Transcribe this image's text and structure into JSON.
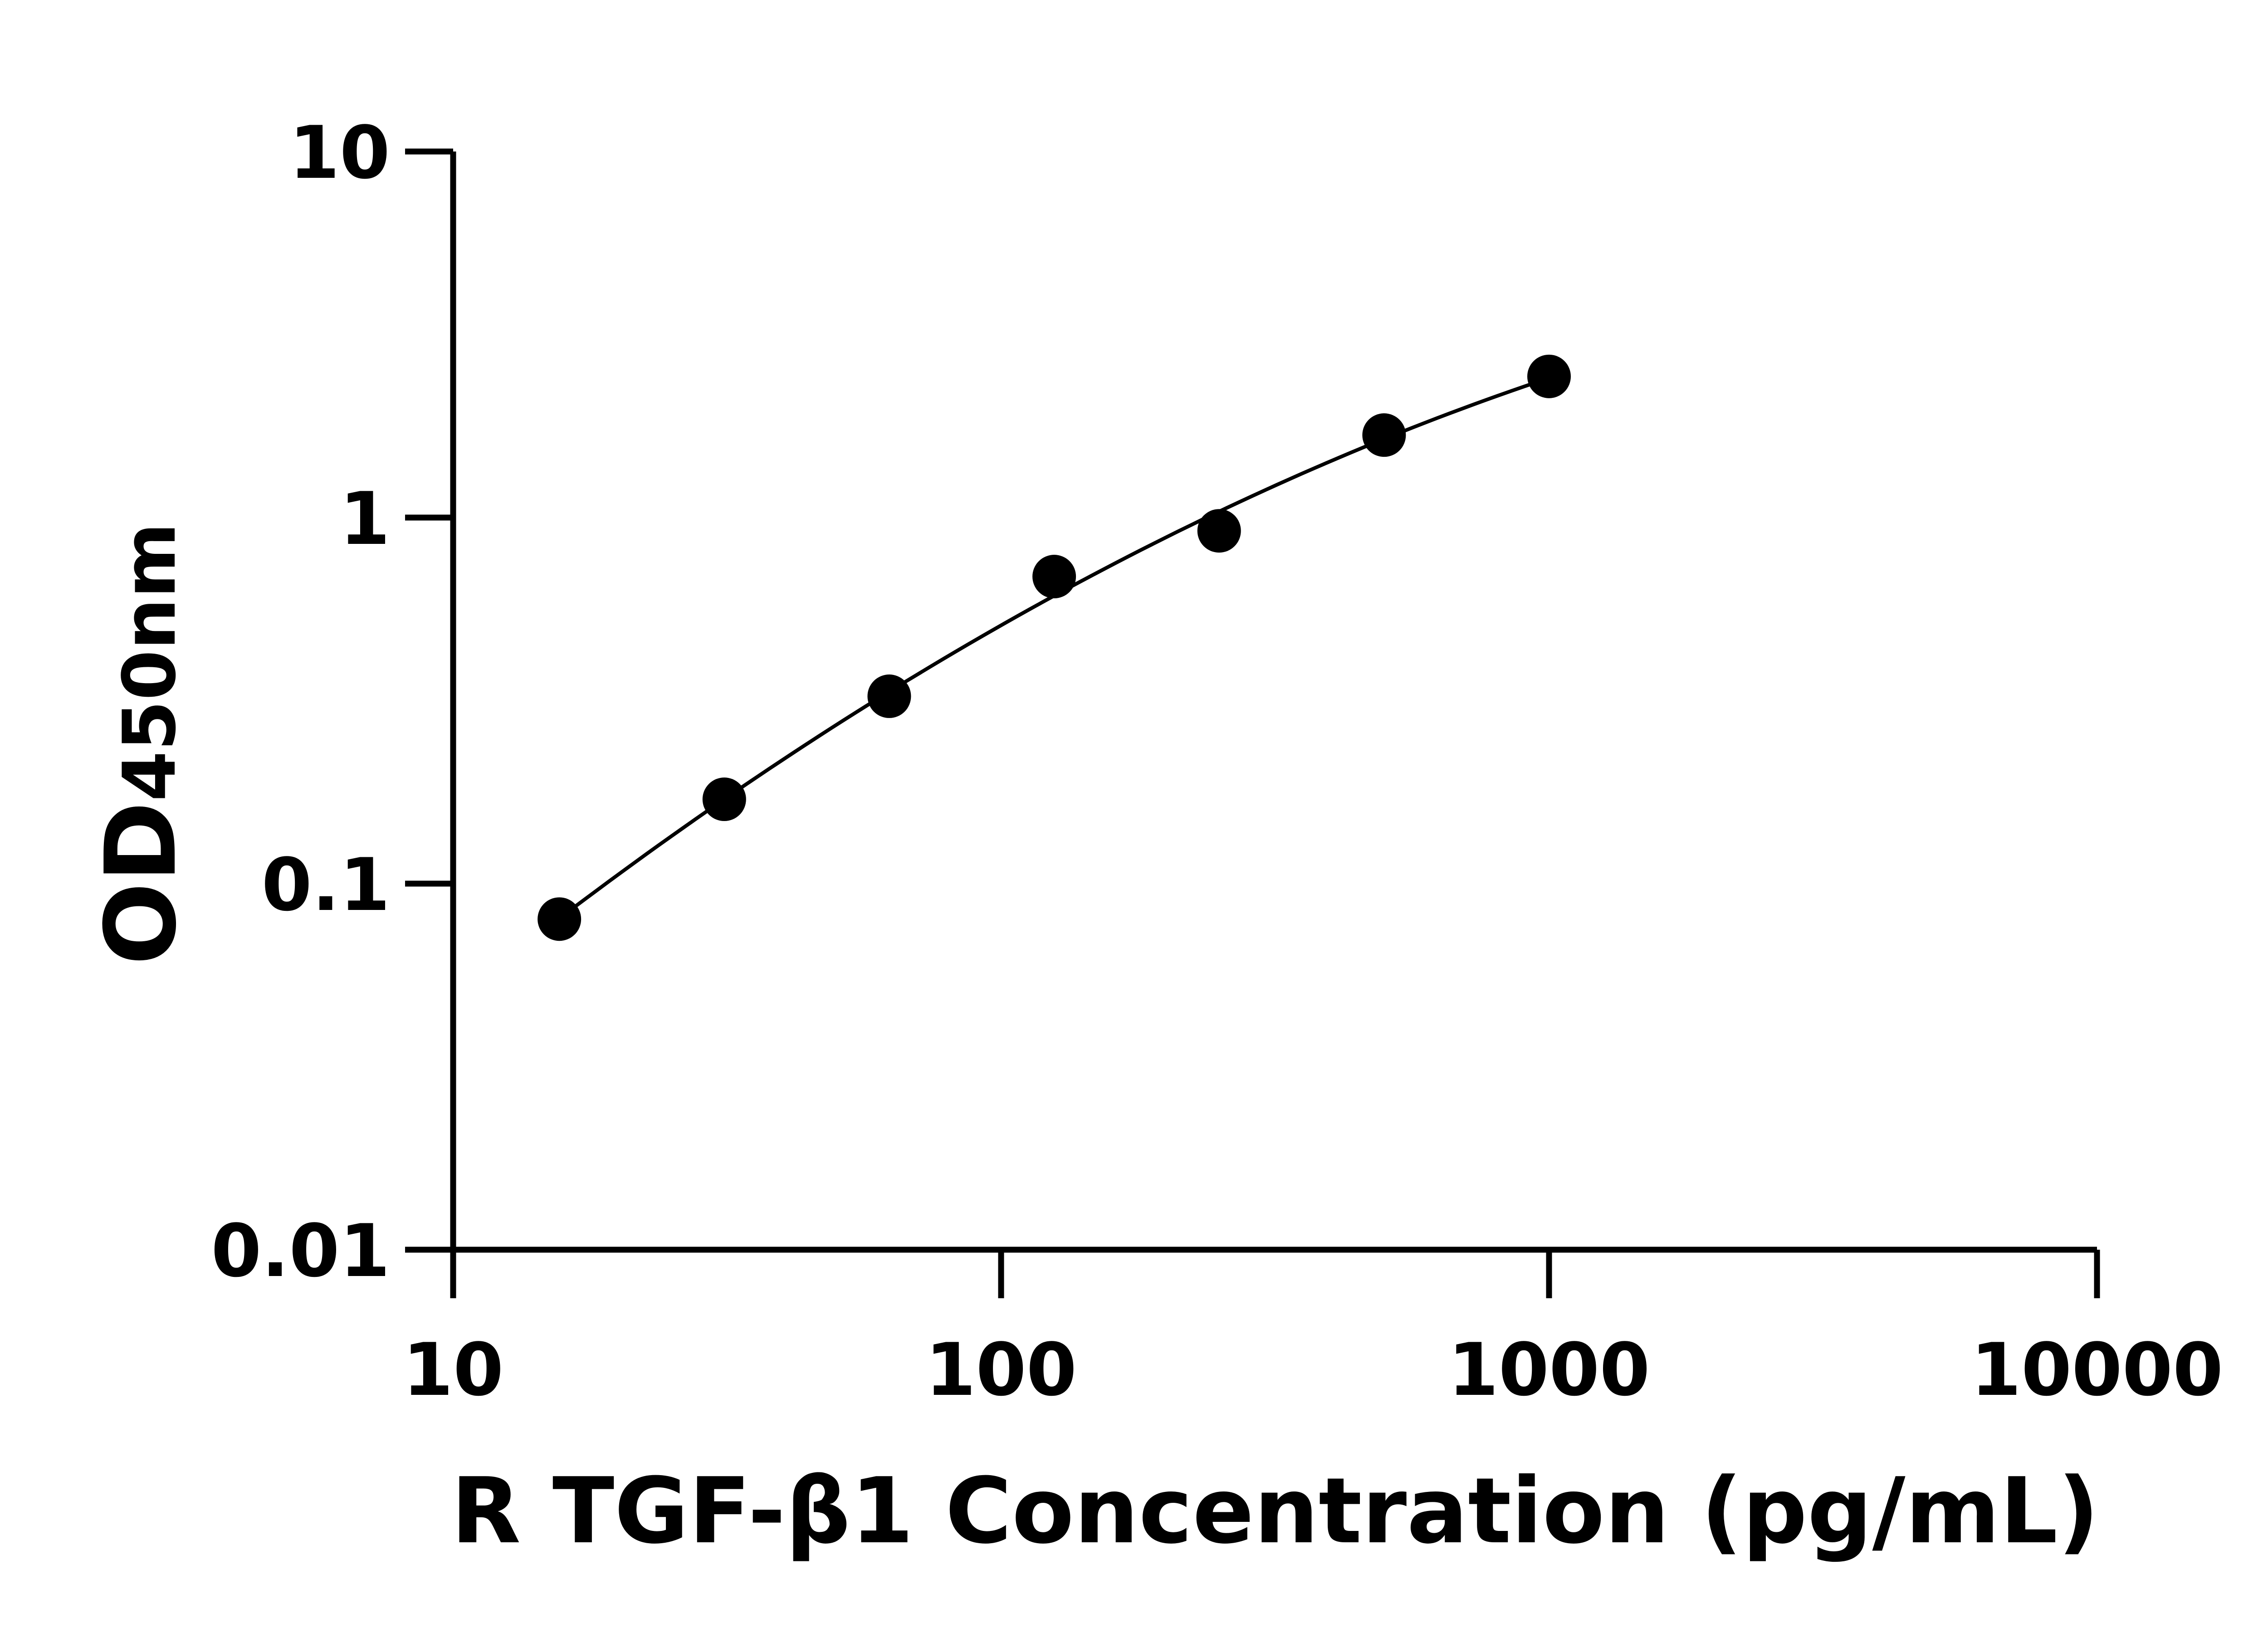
{
  "chart_data": {
    "type": "scatter",
    "xlabel": "R TGF-β1 Concentration (pg/mL)",
    "ylabel": {
      "main": "OD",
      "sub": "450nm"
    },
    "xscale": "log",
    "yscale": "log",
    "xlim": [
      10,
      10000
    ],
    "ylim": [
      0.01,
      10
    ],
    "xticks": [
      "10",
      "100",
      "1000",
      "10000"
    ],
    "yticks": [
      "0.01",
      "0.1",
      "1",
      "10"
    ],
    "grid": false,
    "fit_line": true,
    "marker_color": "#000000",
    "x": [
      15.625,
      31.25,
      62.5,
      125,
      250,
      500,
      1000
    ],
    "y": [
      0.08,
      0.17,
      0.325,
      0.69,
      0.92,
      1.68,
      2.43
    ]
  }
}
